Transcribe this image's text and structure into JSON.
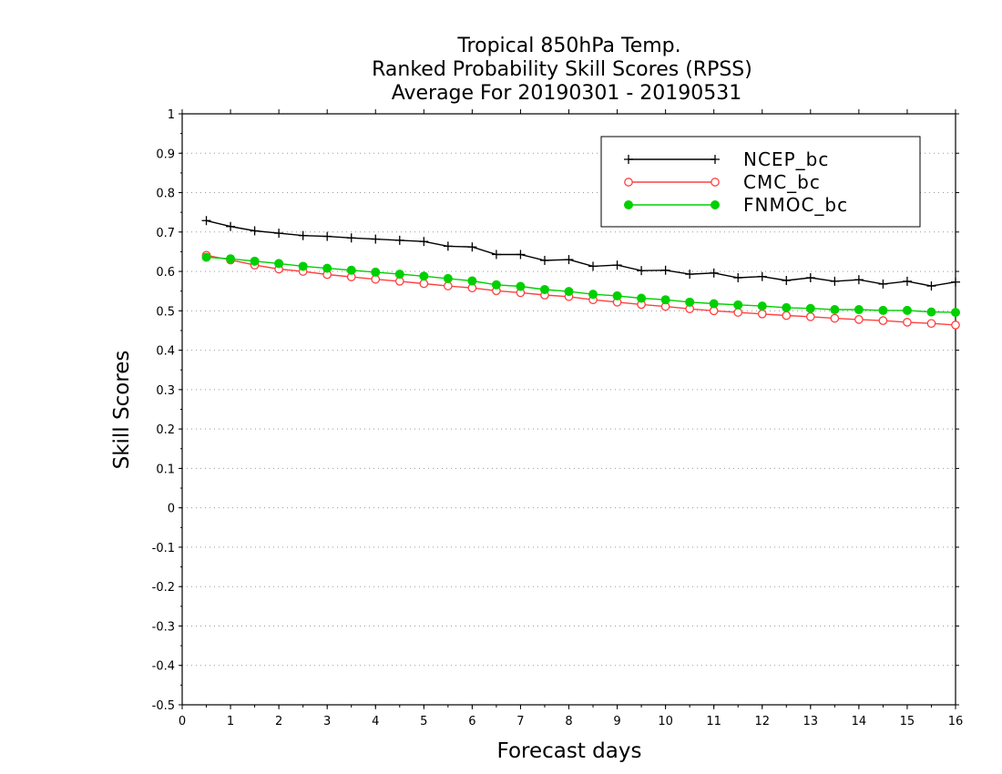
{
  "chart_data": {
    "type": "line",
    "title": [
      "Tropical 850hPa Temp.",
      "Ranked Probability Skill Scores (RPSS)",
      "Average For 20190301 - 20190531"
    ],
    "xlabel": "Forecast days",
    "ylabel": "Skill Scores",
    "xlim": [
      0,
      16
    ],
    "ylim": [
      -0.5,
      1
    ],
    "xticks": [
      "0",
      "1",
      "2",
      "3",
      "4",
      "5",
      "6",
      "7",
      "8",
      "9",
      "10",
      "11",
      "12",
      "13",
      "14",
      "15",
      "16"
    ],
    "yticks": [
      "1",
      "0.9",
      "0.8",
      "0.7",
      "0.6",
      "0.5",
      "0.4",
      "0.3",
      "0.2",
      "0.1",
      "0",
      "-0.1",
      "-0.2",
      "-0.3",
      "-0.4",
      "-0.5"
    ],
    "grid": "horizontal-dotted",
    "legend_position": "top-right",
    "x": [
      0.5,
      1,
      1.5,
      2,
      2.5,
      3,
      3.5,
      4,
      4.5,
      5,
      5.5,
      6,
      6.5,
      7,
      7.5,
      8,
      8.5,
      9,
      9.5,
      10,
      10.5,
      11,
      11.5,
      12,
      12.5,
      13,
      13.5,
      14,
      14.5,
      15,
      15.5,
      16
    ],
    "series": [
      {
        "name": "NCEP_bc",
        "color": "#000000",
        "marker": "plus",
        "values": [
          0.729,
          0.714,
          0.703,
          0.697,
          0.691,
          0.689,
          0.685,
          0.682,
          0.679,
          0.676,
          0.664,
          0.662,
          0.643,
          0.643,
          0.628,
          0.63,
          0.613,
          0.616,
          0.602,
          0.603,
          0.593,
          0.596,
          0.584,
          0.587,
          0.577,
          0.584,
          0.575,
          0.579,
          0.568,
          0.575,
          0.563,
          0.573
        ]
      },
      {
        "name": "CMC_bc",
        "color": "#ff4040",
        "marker": "open-circle",
        "values": [
          0.641,
          0.629,
          0.616,
          0.606,
          0.6,
          0.592,
          0.586,
          0.58,
          0.575,
          0.569,
          0.563,
          0.558,
          0.551,
          0.546,
          0.54,
          0.536,
          0.528,
          0.522,
          0.516,
          0.511,
          0.505,
          0.5,
          0.496,
          0.492,
          0.488,
          0.485,
          0.481,
          0.478,
          0.475,
          0.471,
          0.468,
          0.464
        ]
      },
      {
        "name": "FNMOC_bc",
        "color": "#00d000",
        "marker": "filled-circle",
        "values": [
          0.636,
          0.632,
          0.626,
          0.62,
          0.613,
          0.608,
          0.603,
          0.598,
          0.593,
          0.588,
          0.582,
          0.576,
          0.566,
          0.562,
          0.554,
          0.549,
          0.542,
          0.538,
          0.532,
          0.528,
          0.522,
          0.518,
          0.515,
          0.512,
          0.508,
          0.506,
          0.503,
          0.503,
          0.501,
          0.501,
          0.497,
          0.496
        ]
      }
    ]
  }
}
